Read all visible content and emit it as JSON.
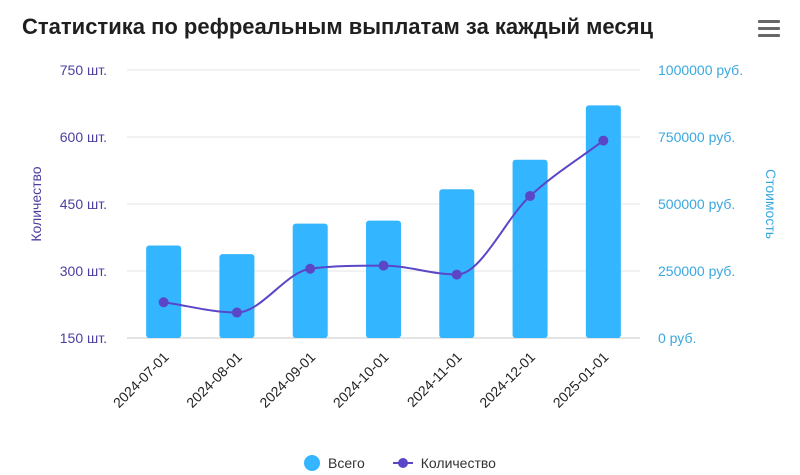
{
  "header": {
    "title": "Статистика по рефреальным выплатам за каждый месяц",
    "menu_icon": "hamburger-menu-icon"
  },
  "colors": {
    "bars": "#33b5ff",
    "line": "#5b46c8",
    "left_axis": "#4b3fa0",
    "right_axis": "#3aa8df",
    "grid": "#e6e6e6"
  },
  "chart_data": {
    "type": "bar",
    "categories": [
      "2024-07-01",
      "2024-08-01",
      "2024-09-01",
      "2024-10-01",
      "2024-11-01",
      "2024-12-01",
      "2025-01-01"
    ],
    "series": [
      {
        "name": "Всего",
        "type": "bar",
        "axis": "right",
        "values": [
          345000,
          313000,
          427000,
          438000,
          555000,
          665000,
          868000
        ]
      },
      {
        "name": "Количество",
        "type": "line",
        "axis": "left",
        "values": [
          230,
          207,
          305,
          312,
          292,
          468,
          592
        ]
      }
    ],
    "left_axis": {
      "label": "Количество",
      "ticks": [
        "750 шт.",
        "600 шт.",
        "450 шт.",
        "300 шт.",
        "150 шт."
      ],
      "range": [
        150,
        750
      ]
    },
    "right_axis": {
      "label": "Стоимость",
      "ticks": [
        "1000000 руб.",
        "750000 руб.",
        "500000 руб.",
        "250000 руб.",
        "0 руб."
      ],
      "range": [
        0,
        1000000
      ]
    },
    "grid": true,
    "legend": "bottom"
  }
}
